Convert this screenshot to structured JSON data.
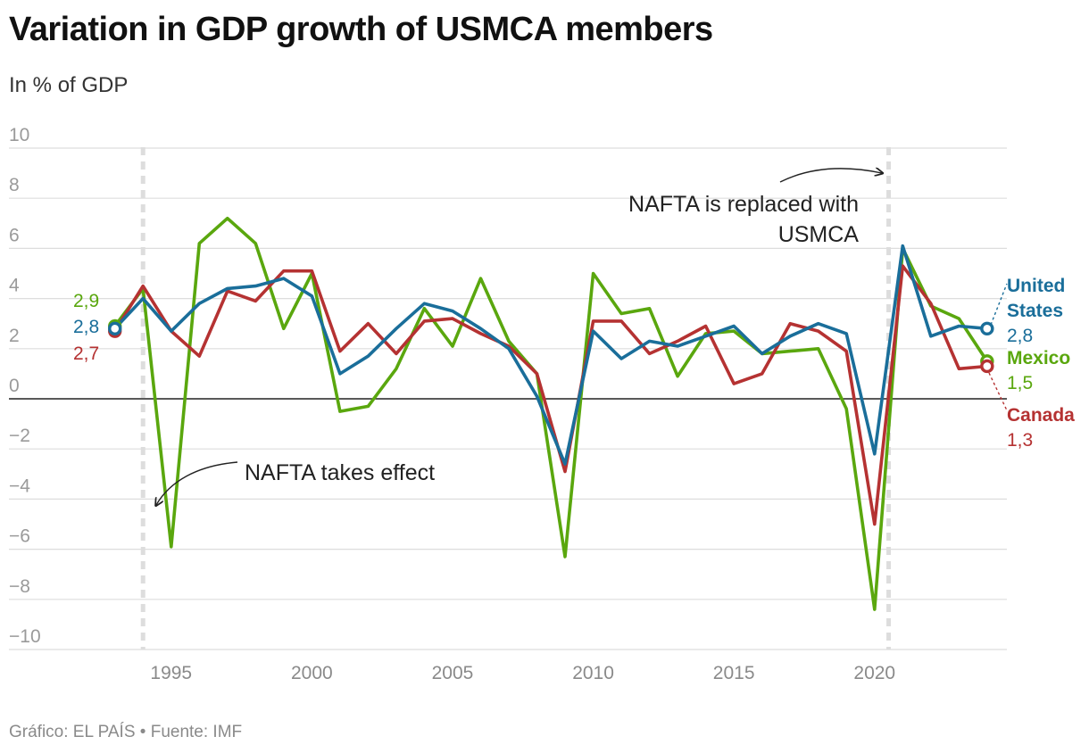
{
  "header": {
    "title": "Variation in GDP growth of USMCA members",
    "subtitle": "In % of GDP"
  },
  "footer": {
    "source": "Gráfico: EL PAÍS • Fuente: IMF"
  },
  "colors": {
    "us": "#1a6e9a",
    "mexico": "#5aa70e",
    "canada": "#b53232",
    "grid": "#dddddd",
    "zero": "#222222",
    "marker_line": "#dddddd"
  },
  "annotations": {
    "nafta_effect": "NAFTA takes effect",
    "usmca_line1": "NAFTA is replaced with",
    "usmca_line2": "USMCA"
  },
  "labels": {
    "start": {
      "mexico": "2,9",
      "us": "2,8",
      "canada": "2,7"
    },
    "end": {
      "us_name_1": "United",
      "us_name_2": "States",
      "us_value": "2,8",
      "mexico_name": "Mexico",
      "mexico_value": "1,5",
      "canada_name": "Canada",
      "canada_value": "1,3"
    }
  },
  "chart_data": {
    "type": "line",
    "x": [
      1993,
      1994,
      1995,
      1996,
      1997,
      1998,
      1999,
      2000,
      2001,
      2002,
      2003,
      2004,
      2005,
      2006,
      2007,
      2008,
      2009,
      2010,
      2011,
      2012,
      2013,
      2014,
      2015,
      2016,
      2017,
      2018,
      2019,
      2020,
      2021,
      2022,
      2023,
      2024
    ],
    "series": [
      {
        "name": "United States",
        "key": "us",
        "values": [
          2.8,
          4.0,
          2.7,
          3.8,
          4.4,
          4.5,
          4.8,
          4.1,
          1.0,
          1.7,
          2.8,
          3.8,
          3.5,
          2.8,
          2.0,
          0.1,
          -2.6,
          2.7,
          1.6,
          2.3,
          2.1,
          2.5,
          2.9,
          1.8,
          2.5,
          3.0,
          2.6,
          -2.2,
          6.1,
          2.5,
          2.9,
          2.8
        ]
      },
      {
        "name": "Mexico",
        "key": "mexico",
        "values": [
          2.9,
          4.4,
          -5.9,
          6.2,
          7.2,
          6.2,
          2.8,
          5.0,
          -0.5,
          -0.3,
          1.2,
          3.6,
          2.1,
          4.8,
          2.3,
          1.0,
          -6.3,
          5.0,
          3.4,
          3.6,
          0.9,
          2.6,
          2.7,
          1.8,
          1.9,
          2.0,
          -0.4,
          -8.4,
          6.0,
          3.7,
          3.2,
          1.5
        ]
      },
      {
        "name": "Canada",
        "key": "canada",
        "values": [
          2.7,
          4.5,
          2.7,
          1.7,
          4.3,
          3.9,
          5.1,
          5.1,
          1.9,
          3.0,
          1.8,
          3.1,
          3.2,
          2.6,
          2.1,
          1.0,
          -2.9,
          3.1,
          3.1,
          1.8,
          2.3,
          2.9,
          0.6,
          1.0,
          3.0,
          2.7,
          1.9,
          -5.0,
          5.3,
          3.8,
          1.2,
          1.3
        ]
      }
    ],
    "xlim": [
      1992,
      2025
    ],
    "ylim": [
      -10,
      10
    ],
    "yticks": [
      10,
      8,
      6,
      4,
      2,
      0,
      -2,
      -4,
      -6,
      -8,
      -10
    ],
    "xticks": [
      1995,
      2000,
      2005,
      2010,
      2015,
      2020
    ],
    "event_lines": [
      1994,
      2020.5
    ],
    "grid": true,
    "title": "Variation in GDP growth of USMCA members",
    "ylabel": "In % of GDP"
  }
}
